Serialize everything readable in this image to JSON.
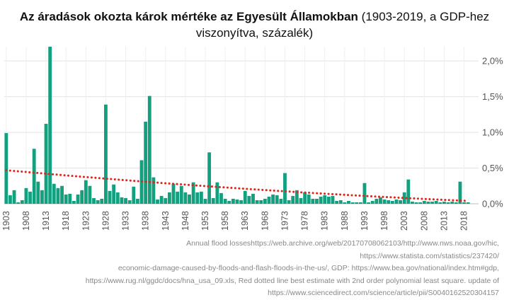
{
  "chart_data": {
    "type": "bar",
    "title": "Az áradások okozta károk mértéke az Egyesült Államokban",
    "subtitle": "(1903-2019, a GDP-hez viszonyítva, százalék)",
    "bar_color": "#12a07f",
    "trend_color": "#e0251b",
    "years": [
      1903,
      1904,
      1905,
      1906,
      1907,
      1908,
      1909,
      1910,
      1911,
      1912,
      1913,
      1914,
      1915,
      1916,
      1917,
      1918,
      1919,
      1920,
      1921,
      1922,
      1923,
      1924,
      1925,
      1926,
      1927,
      1928,
      1929,
      1930,
      1931,
      1932,
      1933,
      1934,
      1935,
      1936,
      1937,
      1938,
      1939,
      1940,
      1941,
      1942,
      1943,
      1944,
      1945,
      1946,
      1947,
      1948,
      1949,
      1950,
      1951,
      1952,
      1953,
      1954,
      1955,
      1956,
      1957,
      1958,
      1959,
      1960,
      1961,
      1962,
      1963,
      1964,
      1965,
      1966,
      1967,
      1968,
      1969,
      1970,
      1971,
      1972,
      1973,
      1974,
      1975,
      1976,
      1977,
      1978,
      1979,
      1980,
      1981,
      1982,
      1983,
      1984,
      1985,
      1986,
      1987,
      1988,
      1989,
      1990,
      1991,
      1992,
      1993,
      1994,
      1995,
      1996,
      1997,
      1998,
      1999,
      2000,
      2001,
      2002,
      2003,
      2004,
      2005,
      2006,
      2007,
      2008,
      2009,
      2010,
      2011,
      2012,
      2013,
      2014,
      2015,
      2016,
      2017,
      2018,
      2019
    ],
    "values": [
      0.99,
      0.12,
      0.19,
      0.02,
      0.05,
      0.22,
      0.17,
      0.77,
      0.31,
      0.19,
      1.12,
      2.2,
      0.28,
      0.22,
      0.25,
      0.13,
      0.14,
      0.04,
      0.13,
      0.19,
      0.33,
      0.25,
      0.08,
      0.05,
      0.07,
      1.39,
      0.18,
      0.27,
      0.16,
      0.09,
      0.08,
      0.05,
      0.24,
      0.07,
      0.61,
      1.15,
      1.51,
      0.37,
      0.06,
      0.11,
      0.08,
      0.16,
      0.28,
      0.17,
      0.25,
      0.16,
      0.13,
      0.3,
      0.16,
      0.17,
      0.07,
      0.72,
      0.08,
      0.3,
      0.15,
      0.07,
      0.04,
      0.07,
      0.06,
      0.05,
      0.18,
      0.11,
      0.14,
      0.05,
      0.05,
      0.07,
      0.1,
      0.13,
      0.12,
      0.07,
      0.43,
      0.05,
      0.11,
      0.19,
      0.08,
      0.16,
      0.13,
      0.07,
      0.07,
      0.1,
      0.12,
      0.1,
      0.11,
      0.04,
      0.05,
      0.02,
      0.04,
      0.02,
      0.02,
      0.02,
      0.29,
      0.02,
      0.04,
      0.07,
      0.09,
      0.06,
      0.05,
      0.04,
      0.06,
      0.05,
      0.16,
      0.34,
      0.03,
      0.02,
      0.02,
      0.04,
      0.03,
      0.03,
      0.04,
      0.02,
      0.03,
      0.02,
      0.03,
      0.02,
      0.31,
      0.02,
      0.02
    ],
    "trend_start": 0.47,
    "trend_end": 0.04,
    "y_ticks": [
      0,
      0.5,
      1.0,
      1.5,
      2.0
    ],
    "y_tick_labels": [
      "0,0%",
      "0,5%",
      "1,0%",
      "1,5%",
      "2,0%"
    ],
    "x_tick_labels": [
      "1903",
      "1908",
      "1913",
      "1918",
      "1923",
      "1928",
      "1933",
      "1938",
      "1943",
      "1948",
      "1953",
      "1958",
      "1963",
      "1968",
      "1973",
      "1978",
      "1983",
      "1988",
      "1993",
      "1998",
      "2003",
      "2008",
      "2013",
      "2018"
    ],
    "ylim": [
      0,
      2.2
    ]
  },
  "source_lines": [
    "Annual flood losseshttps://web.archive.org/web/20170708062103/http://www.nws.noaa.gov/hic,",
    "https://www.statista.com/statistics/237420/",
    "economic-damage-caused-by-floods-and-flash-floods-in-the-us/, GDP: https://www.bea.gov/national/index.htm#gdp,",
    "https://www.rug.nl/ggdc/docs/hna_usa_09.xls, Red dotted line best estimate with 2nd order polynomial least square. update of",
    "https://www.sciencedirect.com/science/article/pii/S0040162520304157"
  ]
}
